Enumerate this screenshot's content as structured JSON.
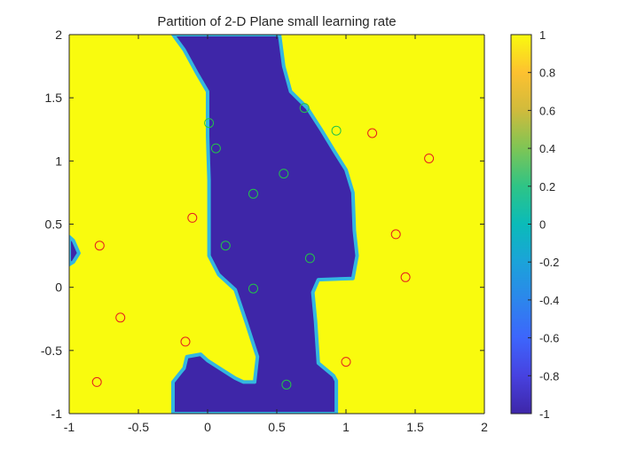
{
  "chart_data": {
    "type": "heatmap",
    "title": "Partition of 2-D Plane small learning rate",
    "xlim": [
      -1,
      2
    ],
    "ylim": [
      -1,
      2
    ],
    "x_ticks": [
      "-1",
      "-0.5",
      "0",
      "0.5",
      "1",
      "1.5",
      "2"
    ],
    "y_ticks": [
      "-1",
      "-0.5",
      "0",
      "0.5",
      "1",
      "1.5",
      "2"
    ],
    "colorbar": {
      "range": [
        -1,
        1
      ],
      "ticks": [
        "-1",
        "-0.8",
        "-0.6",
        "-0.4",
        "-0.2",
        "0",
        "0.2",
        "0.4",
        "0.6",
        "0.8",
        "1"
      ],
      "colormap": "parula"
    },
    "regions": {
      "negative_value": -1,
      "positive_value": 1,
      "negative_color": "#3e26a8",
      "positive_color": "#f9fb0e",
      "boundary_color": "#33b7e0",
      "negative_main_polygon": [
        [
          -0.25,
          -1
        ],
        [
          0.93,
          -1
        ],
        [
          0.93,
          -0.74
        ],
        [
          0.91,
          -0.7
        ],
        [
          0.8,
          -0.6
        ],
        [
          0.78,
          -0.27
        ],
        [
          0.76,
          -0.04
        ],
        [
          0.8,
          0.06
        ],
        [
          1.05,
          0.07
        ],
        [
          1.08,
          0.25
        ],
        [
          1.06,
          0.45
        ],
        [
          1.05,
          0.75
        ],
        [
          1.0,
          0.93
        ],
        [
          0.92,
          1.07
        ],
        [
          0.82,
          1.25
        ],
        [
          0.72,
          1.42
        ],
        [
          0.6,
          1.55
        ],
        [
          0.55,
          1.75
        ],
        [
          0.52,
          2
        ],
        [
          -0.25,
          2
        ],
        [
          -0.17,
          1.88
        ],
        [
          -0.08,
          1.7
        ],
        [
          0.0,
          1.55
        ],
        [
          0.0,
          1.2
        ],
        [
          0.01,
          0.85
        ],
        [
          0.01,
          0.25
        ],
        [
          0.08,
          0.1
        ],
        [
          0.2,
          -0.02
        ],
        [
          0.28,
          -0.28
        ],
        [
          0.36,
          -0.55
        ],
        [
          0.34,
          -0.75
        ],
        [
          0.26,
          -0.75
        ],
        [
          0.2,
          -0.72
        ],
        [
          0.1,
          -0.65
        ],
        [
          0.0,
          -0.58
        ],
        [
          -0.05,
          -0.53
        ],
        [
          -0.15,
          -0.55
        ],
        [
          -0.17,
          -0.64
        ],
        [
          -0.2,
          -0.68
        ],
        [
          -0.25,
          -0.75
        ]
      ],
      "negative_small_polygon": [
        [
          -1,
          0.4
        ],
        [
          -0.97,
          0.37
        ],
        [
          -0.93,
          0.27
        ],
        [
          -0.97,
          0.2
        ],
        [
          -1,
          0.18
        ]
      ]
    },
    "series": [
      {
        "class": "positive",
        "marker": "circle",
        "color": "#e51e1e",
        "points": [
          [
            -0.78,
            0.33
          ],
          [
            -0.11,
            0.55
          ],
          [
            -0.63,
            -0.24
          ],
          [
            -0.16,
            -0.43
          ],
          [
            -0.8,
            -0.75
          ],
          [
            1.0,
            -0.59
          ],
          [
            1.43,
            0.08
          ],
          [
            1.36,
            0.42
          ],
          [
            1.19,
            1.22
          ],
          [
            1.6,
            1.02
          ]
        ]
      },
      {
        "class": "negative",
        "marker": "circle",
        "color": "#24c24a",
        "points": [
          [
            0.01,
            1.3
          ],
          [
            0.06,
            1.1
          ],
          [
            0.33,
            0.74
          ],
          [
            0.55,
            0.9
          ],
          [
            0.7,
            1.42
          ],
          [
            0.93,
            1.24
          ],
          [
            0.13,
            0.33
          ],
          [
            0.74,
            0.23
          ],
          [
            0.33,
            -0.01
          ],
          [
            0.57,
            -0.77
          ]
        ]
      }
    ]
  }
}
